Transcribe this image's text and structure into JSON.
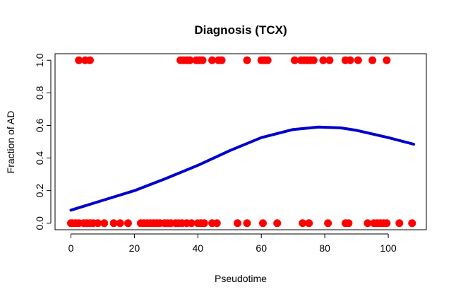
{
  "chart_data": {
    "type": "scatter",
    "title": "Diagnosis (TCX)",
    "xlabel": "Pseudotime",
    "ylabel": "Fraction of AD",
    "xlim": [
      -5,
      112
    ],
    "ylim": [
      -0.04,
      1.04
    ],
    "x_ticks": [
      0,
      20,
      40,
      60,
      80,
      100
    ],
    "y_ticks": [
      0.0,
      0.2,
      0.4,
      0.6,
      0.8,
      1.0
    ],
    "x_tick_labels": [
      "0",
      "20",
      "40",
      "60",
      "80",
      "100"
    ],
    "y_tick_labels": [
      "0.0",
      "0.2",
      "0.4",
      "0.6",
      "0.8",
      "1.0"
    ],
    "grid": false,
    "legend": "none",
    "point_color": "#ff0000",
    "line_color": "#0000cd",
    "series": [
      {
        "type": "scatter",
        "points": [
          [
            2.5,
            1
          ],
          [
            4.5,
            1
          ],
          [
            6.0,
            1
          ],
          [
            34.5,
            1
          ],
          [
            35.5,
            1
          ],
          [
            36.5,
            1
          ],
          [
            37.5,
            1
          ],
          [
            39.5,
            1
          ],
          [
            40.5,
            1
          ],
          [
            41.5,
            1
          ],
          [
            44.5,
            1
          ],
          [
            46.5,
            1
          ],
          [
            47.5,
            1
          ],
          [
            55.5,
            1
          ],
          [
            60.0,
            1
          ],
          [
            61.0,
            1
          ],
          [
            62.0,
            1
          ],
          [
            70.5,
            1
          ],
          [
            72.5,
            1
          ],
          [
            73.5,
            1
          ],
          [
            74.5,
            1
          ],
          [
            75.5,
            1
          ],
          [
            76.5,
            1
          ],
          [
            79.5,
            1
          ],
          [
            81.5,
            1
          ],
          [
            86.5,
            1
          ],
          [
            88.0,
            1
          ],
          [
            90.5,
            1
          ],
          [
            95.0,
            1
          ],
          [
            99.5,
            1
          ],
          [
            0.0,
            0
          ],
          [
            0.5,
            0
          ],
          [
            1.5,
            0
          ],
          [
            2.5,
            0
          ],
          [
            4.0,
            0
          ],
          [
            5.0,
            0
          ],
          [
            6.0,
            0
          ],
          [
            7.0,
            0
          ],
          [
            8.5,
            0
          ],
          [
            10.5,
            0
          ],
          [
            13.5,
            0
          ],
          [
            15.5,
            0
          ],
          [
            18.0,
            0
          ],
          [
            22.0,
            0
          ],
          [
            23.0,
            0
          ],
          [
            24.0,
            0
          ],
          [
            25.0,
            0
          ],
          [
            26.0,
            0
          ],
          [
            27.0,
            0
          ],
          [
            28.0,
            0
          ],
          [
            29.5,
            0
          ],
          [
            30.5,
            0
          ],
          [
            31.5,
            0
          ],
          [
            33.0,
            0
          ],
          [
            34.0,
            0
          ],
          [
            35.0,
            0
          ],
          [
            36.5,
            0
          ],
          [
            38.0,
            0
          ],
          [
            40.0,
            0
          ],
          [
            41.0,
            0
          ],
          [
            42.0,
            0
          ],
          [
            44.5,
            0
          ],
          [
            46.0,
            0
          ],
          [
            52.5,
            0
          ],
          [
            55.5,
            0
          ],
          [
            60.5,
            0
          ],
          [
            65.0,
            0
          ],
          [
            73.0,
            0
          ],
          [
            75.0,
            0
          ],
          [
            81.0,
            0
          ],
          [
            86.5,
            0
          ],
          [
            87.5,
            0
          ],
          [
            93.5,
            0
          ],
          [
            95.5,
            0
          ],
          [
            96.5,
            0
          ],
          [
            97.5,
            0
          ],
          [
            98.5,
            0
          ],
          [
            99.5,
            0
          ],
          [
            103.5,
            0
          ],
          [
            107.5,
            0
          ]
        ]
      },
      {
        "type": "line",
        "points": [
          [
            0,
            0.08
          ],
          [
            10,
            0.14
          ],
          [
            20,
            0.2
          ],
          [
            30,
            0.275
          ],
          [
            40,
            0.355
          ],
          [
            50,
            0.445
          ],
          [
            60,
            0.525
          ],
          [
            70,
            0.575
          ],
          [
            78,
            0.59
          ],
          [
            85,
            0.585
          ],
          [
            90,
            0.57
          ],
          [
            100,
            0.525
          ],
          [
            108,
            0.485
          ]
        ]
      }
    ]
  }
}
